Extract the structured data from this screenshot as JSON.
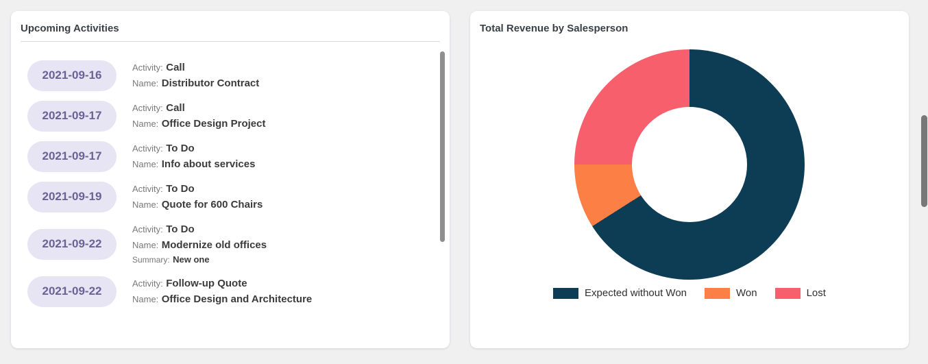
{
  "left_card": {
    "title": "Upcoming Activities",
    "labels": {
      "activity": "Activity:",
      "name": "Name:",
      "summary": "Summary:"
    },
    "activities": [
      {
        "date": "2021-09-16",
        "activity": "Call",
        "name": "Distributor Contract"
      },
      {
        "date": "2021-09-17",
        "activity": "Call",
        "name": "Office Design Project"
      },
      {
        "date": "2021-09-17",
        "activity": "To Do",
        "name": "Info about services"
      },
      {
        "date": "2021-09-19",
        "activity": "To Do",
        "name": "Quote for 600 Chairs"
      },
      {
        "date": "2021-09-22",
        "activity": "To Do",
        "name": "Modernize old offices",
        "summary": "New one"
      },
      {
        "date": "2021-09-22",
        "activity": "Follow-up Quote",
        "name": "Office Design and Architecture"
      }
    ],
    "date_badge_bg": "#e7e5f3",
    "date_badge_text": "#6a6296"
  },
  "right_card": {
    "title": "Total Revenue by Salesperson"
  },
  "chart_data": {
    "type": "pie",
    "subtype": "donut",
    "title": "Total Revenue by Salesperson",
    "labels": [
      "Expected without Won",
      "Won",
      "Lost"
    ],
    "values_percent": [
      66,
      9,
      25
    ],
    "colors": [
      "#0d3d55",
      "#fc7f45",
      "#f75f6d"
    ],
    "start_angle_deg": 0,
    "direction": "clockwise",
    "hole_ratio": 0.5,
    "legend_position": "bottom"
  }
}
